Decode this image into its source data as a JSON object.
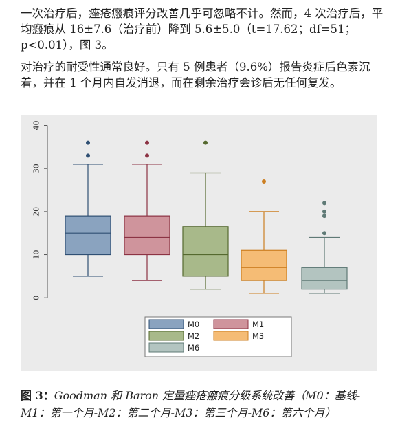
{
  "paragraphs": [
    "一次治疗后，痤疮瘢痕评分改善几乎可忽略不计。然而，4 次治疗后，平均瘢痕从 16±7.6（治疗前）降到 5.6±5.0（t=17.62；df=51；p<0.01），图 3。",
    "对治疗的耐受性通常良好。只有 5 例患者（9.6%）报告炎症后色素沉着，并在 1 个月内自发消退，而在剩余治疗会诊后无任何复发。"
  ],
  "caption": {
    "label": "图 3：",
    "text": "Goodman 和 Baron 定量痤疮瘢痕分级系统改善（M0：基线-M1：第一个月-M2：第二个月-M3：第三个月-M6：第六个月）"
  },
  "chart_data": {
    "type": "box",
    "ylim": [
      -3,
      42
    ],
    "yticks": [
      0,
      10,
      20,
      30,
      40
    ],
    "grid": false,
    "legend_position": "bottom",
    "categories": [
      "M0",
      "M1",
      "M2",
      "M3",
      "M6"
    ],
    "series": [
      {
        "name": "M0",
        "fill": "#8aa3bf",
        "stroke": "#2f4f73",
        "whisker_low": 5,
        "q1": 10,
        "median": 15,
        "q3": 19,
        "whisker_high": 31,
        "outliers": [
          33,
          36
        ]
      },
      {
        "name": "M1",
        "fill": "#cf949c",
        "stroke": "#8c3344",
        "whisker_low": 4,
        "q1": 10,
        "median": 14,
        "q3": 19,
        "whisker_high": 31,
        "outliers": [
          33,
          36
        ]
      },
      {
        "name": "M2",
        "fill": "#a8b98a",
        "stroke": "#55692f",
        "whisker_low": 2,
        "q1": 5,
        "median": 10,
        "q3": 16.5,
        "whisker_high": 29,
        "outliers": [
          36
        ]
      },
      {
        "name": "M3",
        "fill": "#f5bc75",
        "stroke": "#cc7f22",
        "whisker_low": 1,
        "q1": 4,
        "median": 7,
        "q3": 11,
        "whisker_high": 20,
        "outliers": [
          27
        ]
      },
      {
        "name": "M6",
        "fill": "#b3c4c0",
        "stroke": "#5f7a76",
        "whisker_low": 1,
        "q1": 2,
        "median": 4,
        "q3": 7,
        "whisker_high": 14,
        "outliers": [
          15,
          19,
          20,
          22
        ]
      }
    ]
  }
}
